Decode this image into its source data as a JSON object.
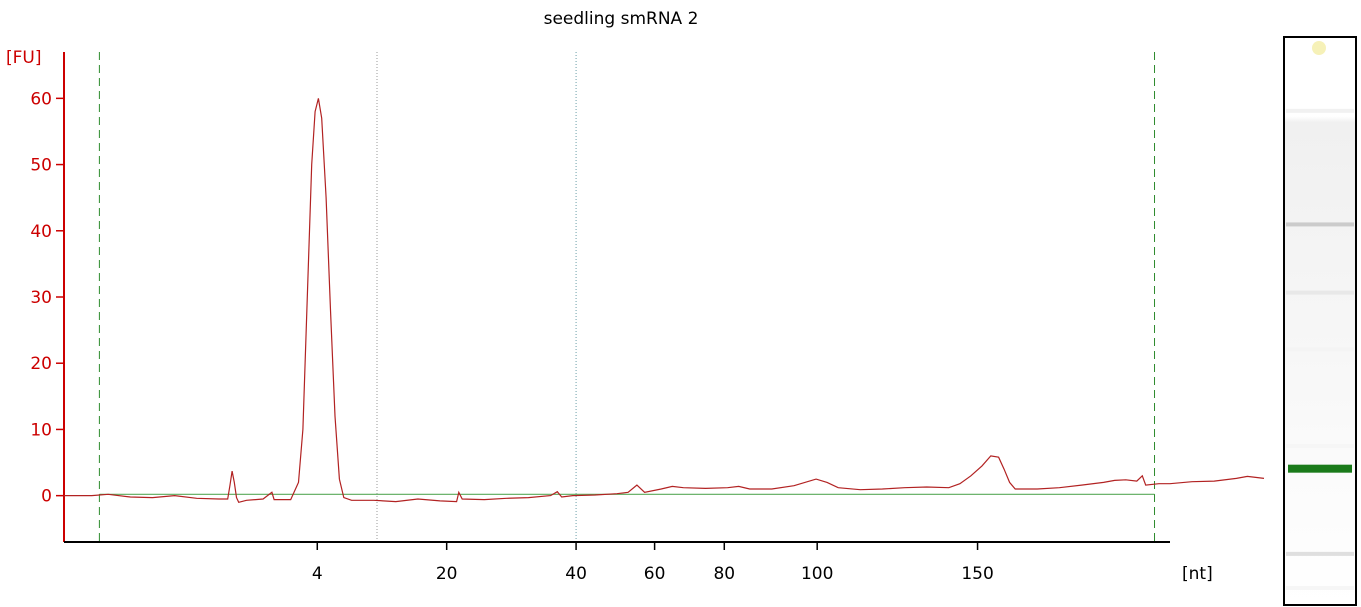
{
  "chart_data": {
    "type": "line",
    "title": "seedling smRNA 2",
    "ylabel": "[FU]",
    "xlabel": "[nt]",
    "ylim": [
      -7,
      67
    ],
    "grid": false,
    "y_ticks": [
      0,
      10,
      20,
      30,
      40,
      50,
      60
    ],
    "x_ticks": [
      {
        "label": "4",
        "t": 0.229
      },
      {
        "label": "20",
        "t": 0.346
      },
      {
        "label": "40",
        "t": 0.463
      },
      {
        "label": "60",
        "t": 0.534
      },
      {
        "label": "80",
        "t": 0.597
      },
      {
        "label": "100",
        "t": 0.681
      },
      {
        "label": "150",
        "t": 0.826
      }
    ],
    "markers": [
      {
        "kind": "dashed",
        "color": "#2e8b2e",
        "t": 0.032
      },
      {
        "kind": "dotted",
        "color": "#999999",
        "t": 0.283
      },
      {
        "kind": "dotted",
        "color": "#6a9ea8",
        "t": 0.463
      },
      {
        "kind": "dashed",
        "color": "#2e8b2e",
        "t": 0.986
      }
    ],
    "baseline": {
      "color": "#5aaa5a",
      "t_start": 0.032,
      "t_end": 0.986,
      "value": 0.2
    },
    "series": [
      {
        "color": "#b22222",
        "points": [
          [
            0.0,
            0.0
          ],
          [
            0.025,
            0.0
          ],
          [
            0.04,
            0.2
          ],
          [
            0.06,
            -0.2
          ],
          [
            0.08,
            -0.3
          ],
          [
            0.1,
            0.0
          ],
          [
            0.12,
            -0.4
          ],
          [
            0.14,
            -0.5
          ],
          [
            0.148,
            -0.5
          ],
          [
            0.15,
            1.5
          ],
          [
            0.152,
            3.7
          ],
          [
            0.154,
            2.0
          ],
          [
            0.156,
            -0.3
          ],
          [
            0.158,
            -1.0
          ],
          [
            0.165,
            -0.7
          ],
          [
            0.18,
            -0.5
          ],
          [
            0.188,
            0.5
          ],
          [
            0.19,
            -0.6
          ],
          [
            0.205,
            -0.6
          ],
          [
            0.212,
            2.0
          ],
          [
            0.216,
            10.0
          ],
          [
            0.22,
            30.0
          ],
          [
            0.224,
            50.0
          ],
          [
            0.227,
            58.0
          ],
          [
            0.23,
            60.0
          ],
          [
            0.233,
            57.0
          ],
          [
            0.237,
            45.0
          ],
          [
            0.241,
            28.0
          ],
          [
            0.245,
            12.0
          ],
          [
            0.249,
            2.5
          ],
          [
            0.253,
            -0.3
          ],
          [
            0.26,
            -0.7
          ],
          [
            0.28,
            -0.7
          ],
          [
            0.3,
            -0.9
          ],
          [
            0.32,
            -0.5
          ],
          [
            0.34,
            -0.8
          ],
          [
            0.355,
            -0.9
          ],
          [
            0.357,
            0.5
          ],
          [
            0.36,
            -0.5
          ],
          [
            0.38,
            -0.6
          ],
          [
            0.4,
            -0.4
          ],
          [
            0.42,
            -0.3
          ],
          [
            0.44,
            0.0
          ],
          [
            0.446,
            0.6
          ],
          [
            0.45,
            -0.2
          ],
          [
            0.46,
            0.0
          ],
          [
            0.48,
            0.1
          ],
          [
            0.5,
            0.3
          ],
          [
            0.51,
            0.5
          ],
          [
            0.518,
            1.6
          ],
          [
            0.525,
            0.5
          ],
          [
            0.54,
            1.0
          ],
          [
            0.55,
            1.4
          ],
          [
            0.56,
            1.2
          ],
          [
            0.58,
            1.1
          ],
          [
            0.6,
            1.2
          ],
          [
            0.61,
            1.4
          ],
          [
            0.62,
            1.0
          ],
          [
            0.64,
            1.0
          ],
          [
            0.66,
            1.5
          ],
          [
            0.68,
            2.5
          ],
          [
            0.69,
            2.0
          ],
          [
            0.7,
            1.2
          ],
          [
            0.72,
            0.9
          ],
          [
            0.74,
            1.0
          ],
          [
            0.76,
            1.2
          ],
          [
            0.78,
            1.3
          ],
          [
            0.8,
            1.2
          ],
          [
            0.81,
            1.8
          ],
          [
            0.82,
            3.0
          ],
          [
            0.83,
            4.5
          ],
          [
            0.838,
            6.0
          ],
          [
            0.845,
            5.8
          ],
          [
            0.85,
            4.0
          ],
          [
            0.855,
            2.0
          ],
          [
            0.86,
            1.0
          ],
          [
            0.88,
            1.0
          ],
          [
            0.9,
            1.2
          ],
          [
            0.92,
            1.6
          ],
          [
            0.94,
            2.0
          ],
          [
            0.95,
            2.3
          ],
          [
            0.96,
            2.4
          ],
          [
            0.97,
            2.2
          ],
          [
            0.975,
            3.0
          ],
          [
            0.978,
            1.6
          ],
          [
            0.99,
            1.8
          ],
          [
            1.0,
            1.8
          ],
          [
            1.02,
            2.1
          ],
          [
            1.04,
            2.2
          ],
          [
            1.06,
            2.6
          ],
          [
            1.07,
            2.9
          ],
          [
            1.085,
            2.6
          ]
        ]
      }
    ]
  },
  "gel_lane": {
    "bands": [
      {
        "position": 0.13,
        "intensity": 0.08
      },
      {
        "position": 0.33,
        "intensity": 0.28
      },
      {
        "position": 0.45,
        "intensity": 0.12
      },
      {
        "position": 0.55,
        "intensity": 0.06
      },
      {
        "position": 0.72,
        "intensity": 0.05
      },
      {
        "position": 0.91,
        "intensity": 0.18
      },
      {
        "position": 0.97,
        "intensity": 0.05
      }
    ],
    "marker_band_color": "#1a7a1a",
    "marker_band_position": 0.76
  }
}
